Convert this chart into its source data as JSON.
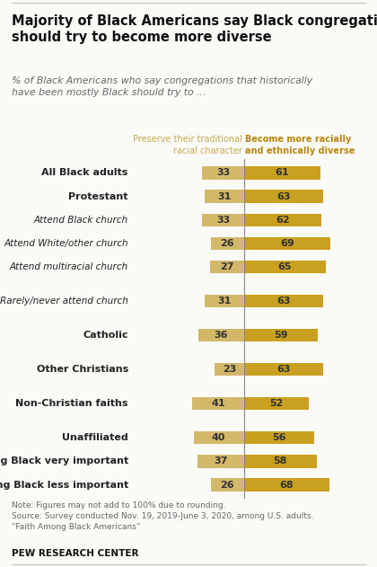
{
  "title": "Majority of Black Americans say Black congregations\nshould try to become more diverse",
  "subtitle": "% of Black Americans who say congregations that historically\nhave been mostly Black should try to ...",
  "col1_label": "Preserve their traditional\nracial character",
  "col2_label": "Become more racially\nand ethnically diverse",
  "categories": [
    "All Black adults",
    "Protestant",
    "Attend Black church",
    "Attend White/other church",
    "Attend multiracial church",
    "Rarely/never attend church",
    "Catholic",
    "Other Christians",
    "Non-Christian faiths",
    "Unaffiliated",
    "Being Black very important",
    "Being Black less important"
  ],
  "bold_rows": [
    0,
    1,
    6,
    7,
    8,
    9,
    10,
    11
  ],
  "italic_rows": [
    2,
    3,
    4,
    5
  ],
  "preserve_values": [
    33,
    31,
    33,
    26,
    27,
    31,
    36,
    23,
    41,
    40,
    37,
    26
  ],
  "diverse_values": [
    61,
    63,
    62,
    69,
    65,
    63,
    59,
    63,
    52,
    56,
    58,
    68
  ],
  "color_left": "#D4B86A",
  "color_right": "#C9A020",
  "note": "Note: Figures may not add to 100% due to rounding.\nSource: Survey conducted Nov. 19, 2019-June 3, 2020, among U.S. adults.\n“Faith Among Black Americans”",
  "source_label": "PEW RESEARCH CENTER",
  "bg_color": "#FAFAF7",
  "divider_color": "#888888",
  "text_color": "#222222",
  "note_color": "#666666",
  "col1_color": "#C8A951",
  "col2_color": "#B8860B",
  "gap_after": [
    0,
    5,
    6,
    7,
    8,
    9
  ]
}
